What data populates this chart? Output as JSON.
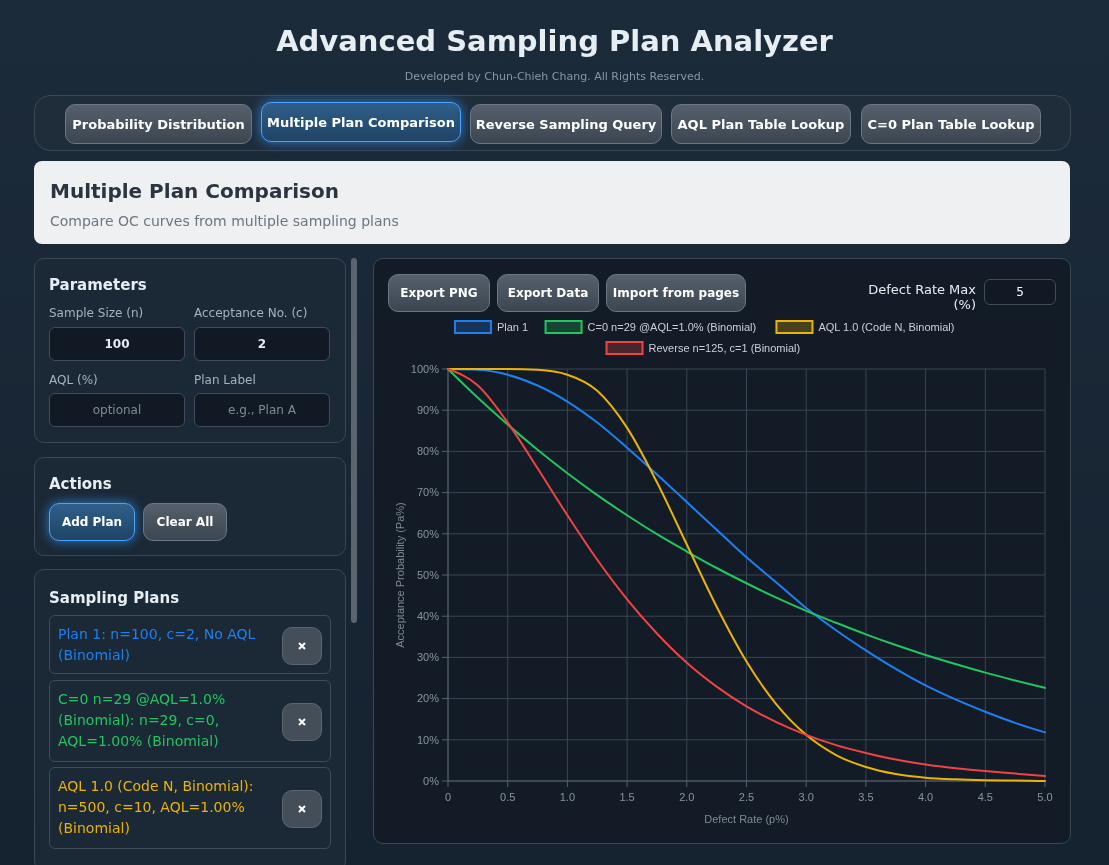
{
  "chart_data": {
    "type": "line",
    "title": "Advanced Sampling Plan Analyzer",
    "subtitle": "Developed by Chun-Chieh Chang. All Rights Reserved.",
    "xlabel": "Defect Rate (p%)",
    "ylabel": "Acceptance Probability (Pa%)",
    "x": [
      0,
      0.25,
      0.5,
      0.75,
      1.0,
      1.25,
      1.5,
      1.75,
      2.0,
      2.25,
      2.5,
      2.75,
      3.0,
      3.25,
      3.5,
      3.75,
      4.0,
      4.25,
      4.5,
      4.75,
      5.0
    ],
    "series": [
      {
        "name": "Plan 1",
        "color": "#1e7ff0",
        "values": [
          100,
          99.8,
          98.6,
          96.0,
          92.1,
          87.0,
          80.9,
          74.4,
          67.7,
          61.0,
          54.3,
          48.2,
          42.0,
          36.6,
          31.7,
          27.2,
          23.2,
          19.8,
          16.8,
          14.1,
          11.8
        ]
      },
      {
        "name": "C=0 n=29 @AQL=1.0% (Binomial)",
        "color": "#22c55e",
        "values": [
          100,
          93.0,
          86.5,
          80.4,
          74.7,
          69.4,
          64.5,
          59.9,
          55.7,
          51.7,
          48.0,
          44.5,
          41.3,
          38.4,
          35.6,
          33.0,
          30.6,
          28.4,
          26.3,
          24.4,
          22.6
        ]
      },
      {
        "name": "AQL 1.0 (Code N, Binomial)",
        "color": "#eab308",
        "values": [
          100,
          100,
          100,
          99.8,
          98.6,
          94.7,
          85.7,
          72.5,
          57.4,
          42.3,
          29.0,
          18.6,
          11.2,
          6.3,
          3.4,
          1.7,
          0.8,
          0.4,
          0.2,
          0.1,
          0.0
        ]
      },
      {
        "name": "Reverse n=125, c=1 (Binomial)",
        "color": "#ef4444",
        "values": [
          100,
          96.0,
          87.0,
          75.9,
          64.5,
          53.7,
          44.1,
          35.8,
          28.7,
          22.9,
          18.1,
          14.3,
          11.2,
          8.7,
          6.8,
          5.2,
          4.0,
          3.1,
          2.4,
          1.8,
          1.2
        ]
      }
    ],
    "xlim": [
      0,
      5
    ],
    "xticks": [
      0,
      0.5,
      {
        "value": 1,
        "label": "1.0"
      },
      1.5,
      {
        "value": 2,
        "label": "2.0"
      },
      2.5,
      {
        "value": 3,
        "label": "3.0"
      },
      3.5,
      {
        "value": 4,
        "label": "4.0"
      },
      4.5,
      {
        "value": 5,
        "label": "5.0"
      }
    ],
    "ylim": [
      0,
      100
    ],
    "yticks": [
      {
        "value": 0,
        "label": "0%"
      },
      {
        "value": 10,
        "label": "10%"
      },
      {
        "value": 20,
        "label": "20%"
      },
      {
        "value": 30,
        "label": "30%"
      },
      {
        "value": 40,
        "label": "40%"
      },
      {
        "value": 50,
        "label": "50%"
      },
      {
        "value": 60,
        "label": "60%"
      },
      {
        "value": 70,
        "label": "70%"
      },
      {
        "value": 80,
        "label": "80%"
      },
      {
        "value": 90,
        "label": "90%"
      },
      {
        "value": 100,
        "label": "100%"
      }
    ],
    "grid": true,
    "legend": "top",
    "marker": "none",
    "line_style": "solid",
    "annotations": [
      "Probability Distribution",
      "Multiple Plan Comparison",
      "Reverse Sampling Query",
      "AQL Plan Table Lookup",
      "C=0 Plan Table Lookup",
      "Multiple Plan Comparison",
      "Compare OC curves from multiple sampling plans",
      "Parameters",
      "Sample Size (n)",
      "Acceptance No. (c)",
      "100",
      "2",
      "AQL (%)",
      "Plan Label",
      "optional",
      "e.g., Plan A",
      "Actions",
      "Add Plan",
      "Clear All",
      "Sampling Plans",
      "Plan 1: n=100, c=2, No AQL (Binomial)",
      "C=0 n=29 @AQL=1.0% (Binomial): n=29, c=0, AQL=1.00% (Binomial)",
      "AQL 1.0 (Code N, Binomial): n=500, c=10, AQL=1.00% (Binomial)",
      "Export PNG",
      "Export Data",
      "Import from pages",
      "Defect Rate Max (%)",
      "5"
    ]
  }
}
